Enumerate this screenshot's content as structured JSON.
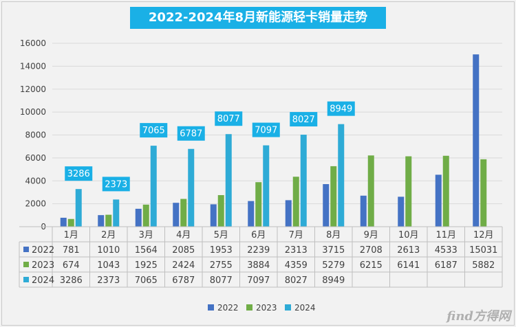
{
  "chart_data": {
    "type": "bar",
    "title": "2022-2024年8月新能源轻卡销量走势",
    "categories": [
      "1月",
      "2月",
      "3月",
      "4月",
      "5月",
      "6月",
      "7月",
      "8月",
      "9月",
      "10月",
      "11月",
      "12月"
    ],
    "ylim": [
      0,
      16000
    ],
    "yticks": [
      0,
      2000,
      4000,
      6000,
      8000,
      10000,
      12000,
      14000,
      16000
    ],
    "series": [
      {
        "name": "2022",
        "color": "#4472c4",
        "values": [
          781,
          1010,
          1564,
          2085,
          1953,
          2239,
          2313,
          3715,
          2708,
          2613,
          4533,
          15031
        ]
      },
      {
        "name": "2023",
        "color": "#70ad47",
        "values": [
          674,
          1043,
          1925,
          2424,
          2755,
          3884,
          4359,
          5279,
          6215,
          6141,
          6187,
          5882
        ]
      },
      {
        "name": "2024",
        "color": "#2eabd6",
        "values": [
          3286,
          2373,
          7065,
          6787,
          8077,
          7097,
          8027,
          8949,
          null,
          null,
          null,
          null
        ]
      }
    ],
    "callout_series": "2024",
    "callout_color": "#1ab0e6",
    "legend_position": "bottom-center"
  },
  "watermark": "find方得网"
}
